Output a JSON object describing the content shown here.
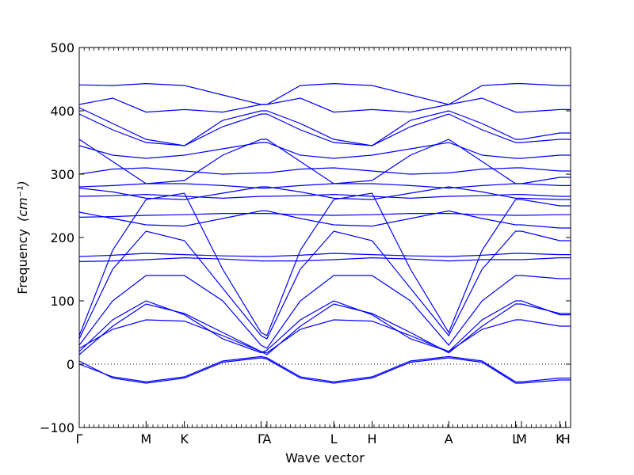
{
  "chart_data": {
    "type": "line",
    "xlabel": "Wave vector",
    "ylabel": "Frequency",
    "ylabel_unit": "(cm⁻¹)",
    "ylim": [
      -100,
      500
    ],
    "yticks": [
      -100,
      0,
      100,
      200,
      300,
      400,
      500
    ],
    "ytick_labels": [
      "−100",
      "0",
      "100",
      "200",
      "300",
      "400",
      "500"
    ],
    "grid": false,
    "zero_line": "dotted",
    "high_symmetry_points": [
      {
        "label": "Γ",
        "x": 0.0
      },
      {
        "label": "M",
        "x": 0.136
      },
      {
        "label": "K",
        "x": 0.214
      },
      {
        "label": "Γ",
        "x": 0.37
      },
      {
        "label": "A",
        "x": 0.382
      },
      {
        "label": "L",
        "x": 0.518
      },
      {
        "label": "H",
        "x": 0.596
      },
      {
        "label": "A",
        "x": 0.752
      },
      {
        "label": "L",
        "x": 0.888
      },
      {
        "label": "M",
        "x": 0.9
      },
      {
        "label": "K",
        "x": 0.978
      },
      {
        "label": "H",
        "x": 0.99
      }
    ],
    "xlim": [
      0,
      1
    ],
    "series_color": "#0000ff",
    "bands": [
      {
        "x": [
          0,
          0.068,
          0.136,
          0.214,
          0.292,
          0.37,
          0.382,
          0.45,
          0.518,
          0.596,
          0.674,
          0.752,
          0.82,
          0.888,
          0.9,
          0.978,
          0.99,
          1.0
        ],
        "y": [
          0,
          -20,
          -28,
          -20,
          5,
          12,
          10,
          -20,
          -28,
          -20,
          5,
          12,
          5,
          -28,
          -28,
          -22,
          -22,
          -22
        ]
      },
      {
        "x": [
          0,
          0.068,
          0.136,
          0.214,
          0.292,
          0.37,
          0.382,
          0.45,
          0.518,
          0.596,
          0.674,
          0.752,
          0.82,
          0.888,
          0.9,
          0.978,
          0.99,
          1.0
        ],
        "y": [
          5,
          -22,
          -30,
          -22,
          3,
          10,
          8,
          -22,
          -30,
          -22,
          3,
          10,
          3,
          -30,
          -30,
          -25,
          -25,
          -25
        ]
      },
      {
        "x": [
          0,
          0.068,
          0.136,
          0.214,
          0.292,
          0.37,
          0.382,
          0.45,
          0.518,
          0.596,
          0.674,
          0.752,
          0.82,
          0.888,
          0.9,
          0.978,
          0.99,
          1.0
        ],
        "y": [
          15,
          60,
          95,
          80,
          50,
          20,
          15,
          60,
          95,
          80,
          50,
          18,
          60,
          95,
          95,
          80,
          80,
          80
        ]
      },
      {
        "x": [
          0,
          0.068,
          0.136,
          0.214,
          0.292,
          0.37,
          0.382,
          0.45,
          0.518,
          0.596,
          0.674,
          0.752,
          0.82,
          0.888,
          0.9,
          0.978,
          0.99,
          1.0
        ],
        "y": [
          20,
          70,
          100,
          78,
          40,
          18,
          22,
          70,
          100,
          78,
          40,
          20,
          70,
          100,
          100,
          78,
          78,
          78
        ]
      },
      {
        "x": [
          0,
          0.068,
          0.136,
          0.214,
          0.292,
          0.37,
          0.382,
          0.45,
          0.518,
          0.596,
          0.674,
          0.752,
          0.82,
          0.888,
          0.9,
          0.978,
          0.99,
          1.0
        ],
        "y": [
          25,
          55,
          70,
          68,
          45,
          20,
          18,
          55,
          70,
          68,
          45,
          20,
          55,
          70,
          70,
          60,
          60,
          60
        ]
      },
      {
        "x": [
          0,
          0.068,
          0.136,
          0.214,
          0.292,
          0.37,
          0.382,
          0.45,
          0.518,
          0.596,
          0.674,
          0.752,
          0.82,
          0.888,
          0.9,
          0.978,
          0.99,
          1.0
        ],
        "y": [
          30,
          100,
          140,
          140,
          100,
          30,
          25,
          100,
          140,
          140,
          100,
          30,
          100,
          140,
          140,
          135,
          135,
          135
        ]
      },
      {
        "x": [
          0,
          0.068,
          0.136,
          0.214,
          0.292,
          0.37,
          0.382,
          0.45,
          0.518,
          0.596,
          0.674,
          0.752,
          0.82,
          0.888,
          0.9,
          0.978,
          0.99,
          1.0
        ],
        "y": [
          40,
          150,
          210,
          195,
          120,
          45,
          40,
          150,
          210,
          195,
          120,
          45,
          150,
          210,
          210,
          195,
          195,
          195
        ]
      },
      {
        "x": [
          0,
          0.068,
          0.136,
          0.214,
          0.292,
          0.37,
          0.382,
          0.45,
          0.518,
          0.596,
          0.674,
          0.752,
          0.82,
          0.888,
          0.9,
          0.978,
          0.99,
          1.0
        ],
        "y": [
          45,
          180,
          260,
          270,
          150,
          50,
          45,
          180,
          260,
          270,
          150,
          50,
          180,
          260,
          260,
          250,
          250,
          250
        ]
      },
      {
        "x": [
          0,
          0.068,
          0.136,
          0.214,
          0.292,
          0.37,
          0.382,
          0.45,
          0.518,
          0.596,
          0.674,
          0.752,
          0.82,
          0.888,
          0.9,
          0.978,
          0.99,
          1.0
        ],
        "y": [
          162,
          163,
          165,
          168,
          166,
          163,
          163,
          163,
          165,
          168,
          166,
          163,
          165,
          165,
          165,
          168,
          168,
          168
        ]
      },
      {
        "x": [
          0,
          0.068,
          0.136,
          0.214,
          0.292,
          0.37,
          0.382,
          0.45,
          0.518,
          0.596,
          0.674,
          0.752,
          0.82,
          0.888,
          0.9,
          0.978,
          0.99,
          1.0
        ],
        "y": [
          170,
          172,
          175,
          173,
          171,
          170,
          170,
          172,
          175,
          173,
          171,
          170,
          172,
          175,
          175,
          173,
          173,
          173
        ]
      },
      {
        "x": [
          0,
          0.068,
          0.136,
          0.214,
          0.292,
          0.37,
          0.382,
          0.45,
          0.518,
          0.596,
          0.674,
          0.752,
          0.82,
          0.888,
          0.9,
          0.978,
          0.99,
          1.0
        ],
        "y": [
          232,
          233,
          235,
          236,
          238,
          238,
          238,
          236,
          235,
          236,
          238,
          238,
          236,
          235,
          235,
          236,
          236,
          236
        ]
      },
      {
        "x": [
          0,
          0.068,
          0.136,
          0.214,
          0.292,
          0.37,
          0.382,
          0.45,
          0.518,
          0.596,
          0.674,
          0.752,
          0.82,
          0.888,
          0.9,
          0.978,
          0.99,
          1.0
        ],
        "y": [
          240,
          230,
          220,
          218,
          230,
          242,
          242,
          230,
          220,
          218,
          230,
          242,
          230,
          220,
          220,
          215,
          215,
          215
        ]
      },
      {
        "x": [
          0,
          0.068,
          0.136,
          0.214,
          0.292,
          0.37,
          0.382,
          0.45,
          0.518,
          0.596,
          0.674,
          0.752,
          0.82,
          0.888,
          0.9,
          0.978,
          0.99,
          1.0
        ],
        "y": [
          265,
          266,
          268,
          265,
          262,
          265,
          265,
          266,
          268,
          265,
          262,
          265,
          266,
          268,
          268,
          265,
          265,
          265
        ]
      },
      {
        "x": [
          0,
          0.068,
          0.136,
          0.214,
          0.292,
          0.37,
          0.382,
          0.45,
          0.518,
          0.596,
          0.674,
          0.752,
          0.82,
          0.888,
          0.9,
          0.978,
          0.99,
          1.0
        ],
        "y": [
          278,
          272,
          262,
          260,
          270,
          280,
          280,
          272,
          262,
          260,
          270,
          280,
          272,
          262,
          262,
          260,
          260,
          260
        ]
      },
      {
        "x": [
          0,
          0.068,
          0.136,
          0.214,
          0.292,
          0.37,
          0.382,
          0.45,
          0.518,
          0.596,
          0.674,
          0.752,
          0.82,
          0.888,
          0.9,
          0.978,
          0.99,
          1.0
        ],
        "y": [
          280,
          282,
          285,
          285,
          282,
          278,
          278,
          282,
          285,
          285,
          282,
          278,
          282,
          285,
          285,
          282,
          282,
          282
        ]
      },
      {
        "x": [
          0,
          0.068,
          0.136,
          0.214,
          0.292,
          0.37,
          0.382,
          0.45,
          0.518,
          0.596,
          0.674,
          0.752,
          0.82,
          0.888,
          0.9,
          0.978,
          0.99,
          1.0
        ],
        "y": [
          300,
          308,
          310,
          305,
          300,
          302,
          302,
          308,
          310,
          305,
          300,
          302,
          308,
          310,
          310,
          305,
          305,
          305
        ]
      },
      {
        "x": [
          0,
          0.068,
          0.136,
          0.214,
          0.292,
          0.37,
          0.382,
          0.45,
          0.518,
          0.596,
          0.674,
          0.752,
          0.82,
          0.888,
          0.9,
          0.978,
          0.99,
          1.0
        ],
        "y": [
          345,
          330,
          325,
          330,
          340,
          350,
          350,
          330,
          325,
          330,
          340,
          350,
          330,
          325,
          325,
          330,
          330,
          330
        ]
      },
      {
        "x": [
          0,
          0.068,
          0.136,
          0.214,
          0.292,
          0.37,
          0.382,
          0.45,
          0.518,
          0.596,
          0.674,
          0.752,
          0.82,
          0.888,
          0.9,
          0.978,
          0.99,
          1.0
        ],
        "y": [
          355,
          320,
          285,
          290,
          330,
          355,
          355,
          320,
          285,
          290,
          330,
          355,
          320,
          285,
          285,
          295,
          295,
          295
        ]
      },
      {
        "x": [
          0,
          0.068,
          0.136,
          0.214,
          0.292,
          0.37,
          0.382,
          0.45,
          0.518,
          0.596,
          0.674,
          0.752,
          0.82,
          0.888,
          0.9,
          0.978,
          0.99,
          1.0
        ],
        "y": [
          395,
          370,
          350,
          345,
          375,
          395,
          395,
          370,
          350,
          345,
          375,
          395,
          370,
          350,
          350,
          355,
          355,
          355
        ]
      },
      {
        "x": [
          0,
          0.068,
          0.136,
          0.214,
          0.292,
          0.37,
          0.382,
          0.45,
          0.518,
          0.596,
          0.674,
          0.752,
          0.82,
          0.888,
          0.9,
          0.978,
          0.99,
          1.0
        ],
        "y": [
          405,
          380,
          355,
          345,
          385,
          400,
          400,
          380,
          355,
          345,
          385,
          400,
          380,
          355,
          355,
          365,
          365,
          365
        ]
      },
      {
        "x": [
          0,
          0.068,
          0.136,
          0.214,
          0.292,
          0.37,
          0.382,
          0.45,
          0.518,
          0.596,
          0.674,
          0.752,
          0.82,
          0.888,
          0.9,
          0.978,
          0.99,
          1.0
        ],
        "y": [
          410,
          420,
          398,
          402,
          398,
          410,
          410,
          420,
          398,
          402,
          398,
          410,
          420,
          398,
          398,
          402,
          402,
          402
        ]
      },
      {
        "x": [
          0,
          0.068,
          0.136,
          0.214,
          0.292,
          0.37,
          0.382,
          0.45,
          0.518,
          0.596,
          0.674,
          0.752,
          0.82,
          0.888,
          0.9,
          0.978,
          0.99,
          1.0
        ],
        "y": [
          441,
          440,
          443,
          440,
          425,
          410,
          410,
          440,
          443,
          440,
          425,
          410,
          440,
          443,
          443,
          440,
          440,
          440
        ]
      }
    ]
  }
}
